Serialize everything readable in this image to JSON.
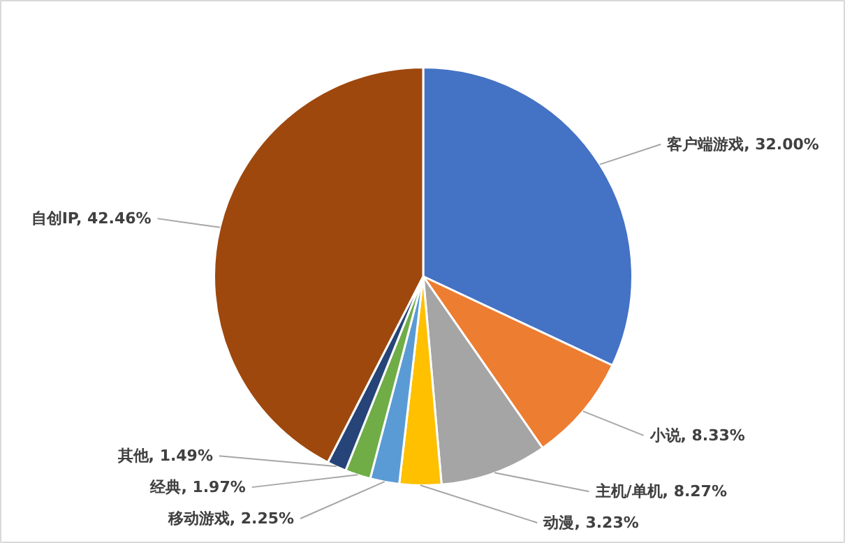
{
  "chart_data": {
    "type": "pie",
    "categories": [
      "客户端游戏",
      "小说",
      "主机/单机",
      "动漫",
      "移动游戏",
      "经典",
      "其他",
      "自创IP"
    ],
    "values": [
      32.0,
      8.33,
      8.27,
      3.23,
      2.25,
      1.97,
      1.49,
      42.46
    ],
    "value_labels": [
      "32.00%",
      "8.33%",
      "8.27%",
      "3.23%",
      "2.25%",
      "1.97%",
      "1.49%",
      "42.46%"
    ],
    "colors": [
      "#4472c4",
      "#ed7d31",
      "#a5a5a5",
      "#ffc000",
      "#5b9bd5",
      "#70ad47",
      "#264478",
      "#9e480e"
    ],
    "legend": false
  }
}
